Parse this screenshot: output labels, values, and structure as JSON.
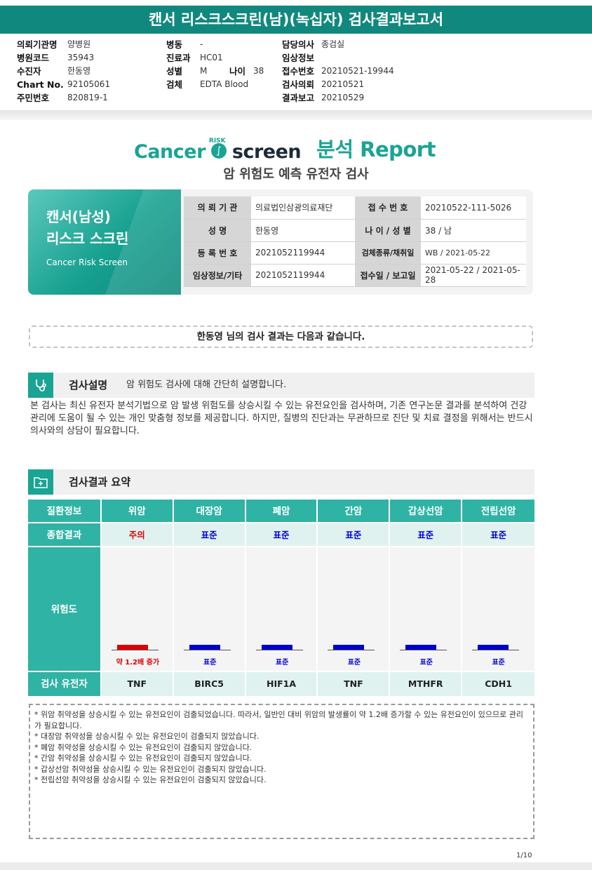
{
  "report_title": "캔서 리스크스크린(남)(녹십자) 검사결과보고서",
  "meta": {
    "col1": [
      {
        "k": "의뢰기관명",
        "v": "양병원"
      },
      {
        "k": "병원코드",
        "v": "35943"
      },
      {
        "k": "수진자",
        "v": "한동영"
      },
      {
        "k": "Chart No.",
        "v": "92105061"
      },
      {
        "k": "주민번호",
        "v": "820819-1"
      }
    ],
    "col2": [
      {
        "k": "병동",
        "v": "-"
      },
      {
        "k": "진료과",
        "v": "HC01"
      },
      {
        "k": "성별",
        "v": "M",
        "k2": "나이",
        "v2": "38"
      },
      {
        "k": "검체",
        "v": "EDTA Blood"
      }
    ],
    "col3": [
      {
        "k": "담당의사",
        "v": "종검실"
      },
      {
        "k": "임상정보",
        "v": ""
      },
      {
        "k": "접수번호",
        "v": "20210521-19944"
      },
      {
        "k": "검사의뢰",
        "v": "20210521"
      },
      {
        "k": "결과보고",
        "v": "20210529"
      }
    ]
  },
  "brand": {
    "cancer": "Cancer",
    "risk": "RISK",
    "screen": "screen",
    "report": "분석 Report",
    "subtitle": "암 위험도 예측 유전자 검사"
  },
  "card": {
    "title_line1": "캔서(남성)",
    "title_line2": "리스크 스크린",
    "title_en": "Cancer Risk Screen",
    "rows": [
      {
        "l1": "의 뢰 기 관",
        "v1": "의료법인삼광의료재단",
        "l2": "접 수 번 호",
        "v2": "20210522-111-5026"
      },
      {
        "l1": "성            명",
        "v1": "한동영",
        "l2": "나 이 / 성 별",
        "v2": "38 / 남"
      },
      {
        "l1": "등 록 번 호",
        "v1": "2021052119944",
        "l2": "검체종류/채취일",
        "v2": "WB / 2021-05-22"
      },
      {
        "l1": "임상정보/기타",
        "v1": "2021052119944",
        "l2": "접수일 / 보고일",
        "v2": "2021-05-22 / 2021-05-28"
      }
    ]
  },
  "greeting": "한동영 님의 검사 결과는 다음과 같습니다.",
  "section1": {
    "title": "검사설명",
    "subtitle": "암 위험도 검사에 대해 간단히 설명합니다.",
    "description": "본 검사는 최신 유전자 분석기법으로 암 발생 위험도를 상승시킬 수 있는 유전요인을 검사하며, 기존 연구논문 결과를 분석하여 건강 관리에 도움이 될 수 있는 개인 맞춤형 정보를 제공합니다. 하지만, 질병의 진단과는 무관하므로 진단 및 치료 결정을 위해서는 반드시 의사와의 상담이 필요합니다."
  },
  "section2": {
    "title": "검사결과 요약"
  },
  "summary": {
    "row_labels": {
      "disease": "질환정보",
      "result": "종합결과",
      "risk": "위험도",
      "gene": "검사 유전자"
    },
    "columns": [
      {
        "disease": "위암",
        "result": "주의",
        "status": "caution",
        "risk_label": "약 1.2배 증가",
        "gene": "TNF",
        "bar_color": "#dd0000"
      },
      {
        "disease": "대장암",
        "result": "표준",
        "status": "normal",
        "risk_label": "표준",
        "gene": "BIRC5",
        "bar_color": "#0000cc"
      },
      {
        "disease": "폐암",
        "result": "표준",
        "status": "normal",
        "risk_label": "표준",
        "gene": "HIF1A",
        "bar_color": "#0000cc"
      },
      {
        "disease": "간암",
        "result": "표준",
        "status": "normal",
        "risk_label": "표준",
        "gene": "TNF",
        "bar_color": "#0000cc"
      },
      {
        "disease": "갑상선암",
        "result": "표준",
        "status": "normal",
        "risk_label": "표준",
        "gene": "MTHFR",
        "bar_color": "#0000cc"
      },
      {
        "disease": "전립선암",
        "result": "표준",
        "status": "normal",
        "risk_label": "표준",
        "gene": "CDH1",
        "bar_color": "#0000cc"
      }
    ]
  },
  "notes": [
    "* 위암 취약성을 상승시킬 수 있는 유전요인이 검출되었습니다. 따라서, 일반인 대비 위암의 발생률이 약 1.2배 증가할 수 있는 유전요인이 있으므로 관리가 필요합니다.",
    "* 대장암 취약성을 상승시킬 수 있는 유전요인이 검출되지 않았습니다.",
    "* 폐암 취약성을 상승시킬 수 있는 유전요인이 검출되지 않았습니다.",
    "* 간암 취약성을 상승시킬 수 있는 유전요인이 검출되지 않았습니다.",
    "* 갑상선암 취약성을 상승시킬 수 있는 유전요인이 검출되지 않았습니다.",
    "* 전립선암 취약성을 상승시킬 수 있는 유전요인이 검출되지 않았습니다."
  ],
  "page_number": "1/10",
  "colors": {
    "accent": "#1aa494",
    "header_bar": "#11887d",
    "caution": "#dd0000",
    "normal": "#0000dd"
  }
}
